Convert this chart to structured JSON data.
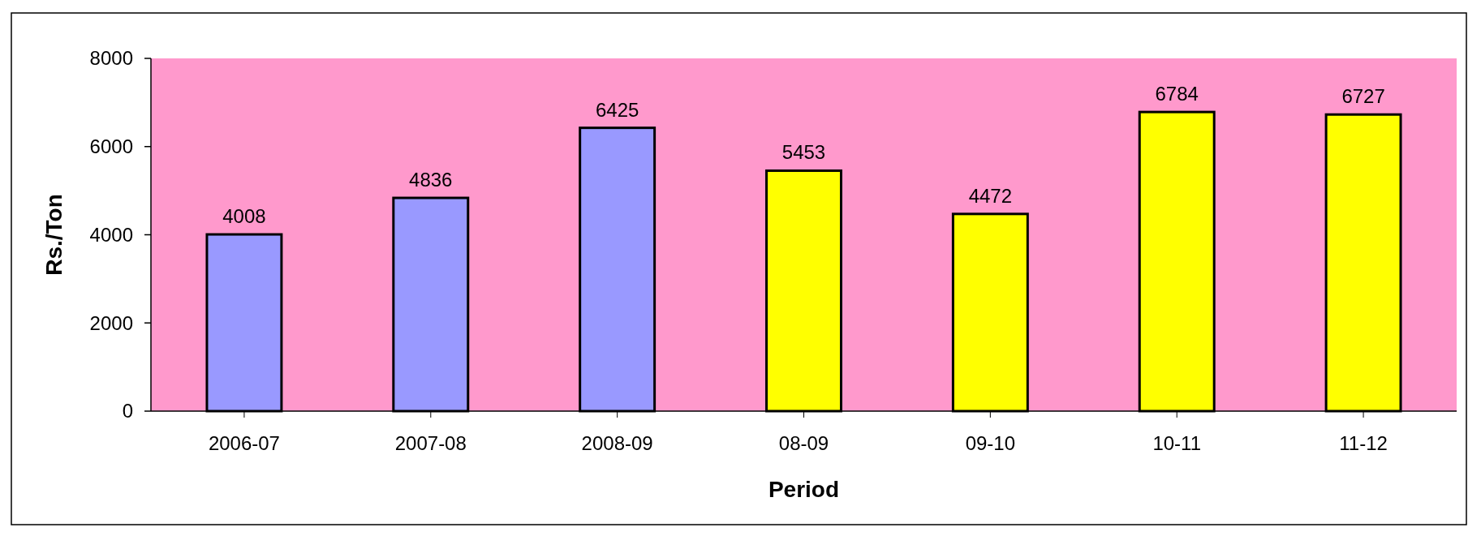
{
  "chart_data": {
    "type": "bar",
    "xlabel": "Period",
    "ylabel": "Rs./Ton",
    "categories": [
      "2006-07",
      "2007-08",
      "2008-09",
      "08-09",
      "09-10",
      "10-11",
      "11-12"
    ],
    "values": [
      4008,
      4836,
      6425,
      5453,
      4472,
      6784,
      6727
    ],
    "colors": [
      "#9999ff",
      "#9999ff",
      "#9999ff",
      "#ffff00",
      "#ffff00",
      "#ffff00",
      "#ffff00"
    ],
    "ylim": [
      0,
      8000
    ],
    "yticks": [
      0,
      2000,
      4000,
      6000,
      8000
    ],
    "data_labels": true
  }
}
